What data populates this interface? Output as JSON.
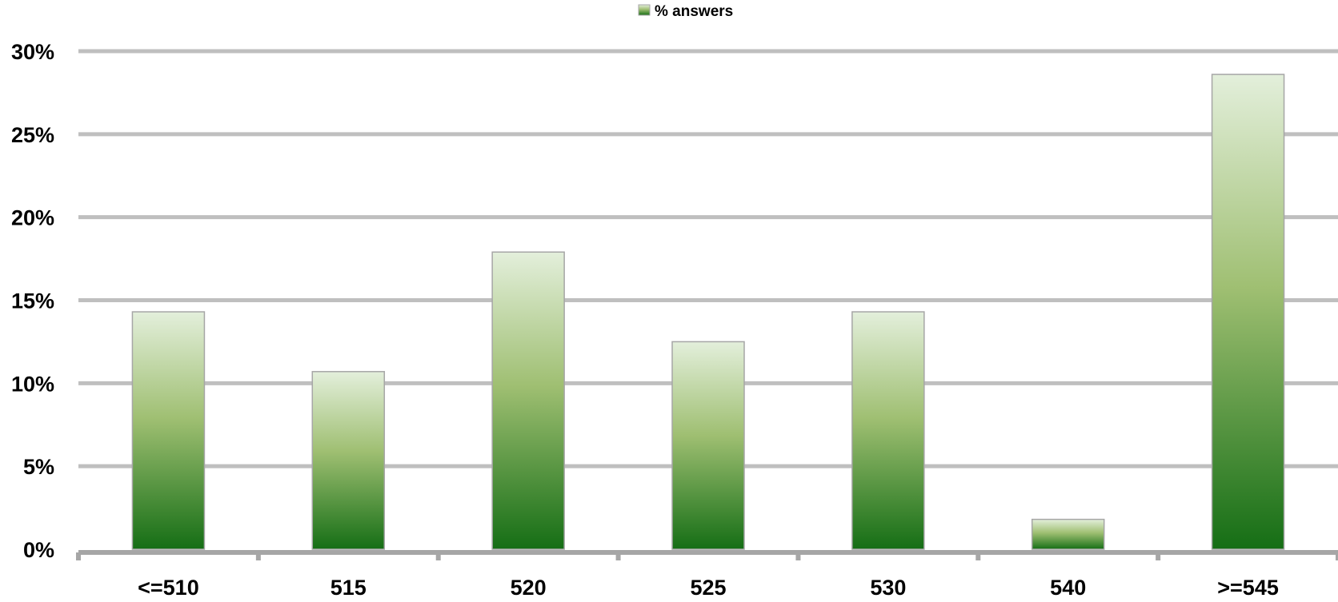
{
  "chart_data": {
    "type": "bar",
    "title": "",
    "xlabel": "",
    "ylabel": "",
    "categories": [
      "<=510",
      "515",
      "520",
      "525",
      "530",
      "540",
      ">=545"
    ],
    "series": [
      {
        "name": "% answers",
        "values": [
          14.3,
          10.7,
          17.9,
          12.5,
          14.3,
          1.8,
          28.6
        ]
      }
    ],
    "ylim": [
      0,
      30
    ],
    "yticks": [
      0,
      5,
      10,
      15,
      20,
      25,
      30
    ],
    "ytick_labels": [
      "0%",
      "5%",
      "10%",
      "15%",
      "20%",
      "25%",
      "30%"
    ],
    "grid": true,
    "legend_position": "top-center",
    "colors": {
      "bar_top": "#e3efdb",
      "bar_mid": "#9fbf72",
      "bar_bottom": "#156e15",
      "bar_border": "#a6a6a6",
      "grid": "#bfbfbf",
      "axis": "#a6a6a6"
    }
  }
}
